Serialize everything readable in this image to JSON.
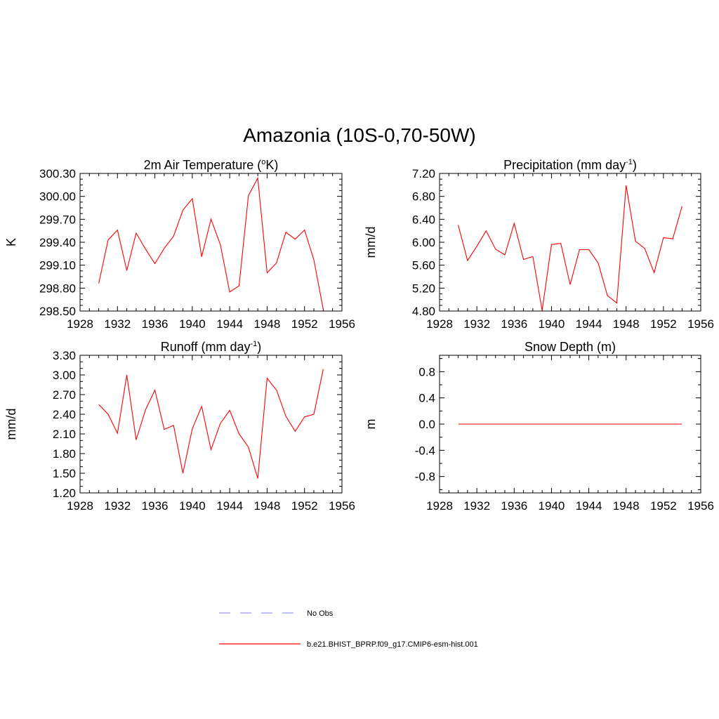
{
  "figure": {
    "title": "Amazonia (10S-0,70-50W)"
  },
  "colors": {
    "series": "#ff0000",
    "obs": "#9999ee",
    "axis": "#000000"
  },
  "legend": {
    "entries": [
      {
        "label": "No Obs",
        "style": "dashed",
        "color": "#9999ee"
      },
      {
        "label": "b.e21.BHIST_BPRP.f09_g17.CMIP6-esm-hist.001",
        "style": "solid",
        "color": "#ff0000"
      }
    ]
  },
  "chart_data": [
    {
      "id": "temperature",
      "type": "line",
      "title": "2m Air Temperature (",
      "title_sup": "o",
      "title_suffix": "K)",
      "ylabel": "K",
      "xlabel": "",
      "xlim": [
        1928,
        1956
      ],
      "xticks": [
        1928,
        1932,
        1936,
        1940,
        1944,
        1948,
        1952,
        1956
      ],
      "xtick_labels": [
        "1928",
        "1932",
        "1936",
        "1940",
        "1944",
        "1948",
        "1952",
        "1956"
      ],
      "ylim": [
        298.5,
        300.3
      ],
      "yticks": [
        298.5,
        298.8,
        299.1,
        299.4,
        299.7,
        300.0,
        300.3
      ],
      "ytick_labels": [
        "298.50",
        "298.80",
        "299.10",
        "299.40",
        "299.70",
        "300.00",
        "300.30"
      ],
      "yminor": 3,
      "series": [
        {
          "name": "b.e21.BHIST_BPRP.f09_g17.CMIP6-esm-hist.001",
          "x": [
            1930,
            1931,
            1932,
            1933,
            1934,
            1935,
            1936,
            1937,
            1938,
            1939,
            1940,
            1941,
            1942,
            1943,
            1944,
            1945,
            1946,
            1947,
            1948,
            1949,
            1950,
            1951,
            1952,
            1953,
            1954
          ],
          "values": [
            298.86,
            299.43,
            299.56,
            299.03,
            299.52,
            299.31,
            299.12,
            299.32,
            299.48,
            299.82,
            299.97,
            299.21,
            299.7,
            299.37,
            298.75,
            298.83,
            300.01,
            300.24,
            299.0,
            299.13,
            299.53,
            299.44,
            299.56,
            299.17,
            298.52
          ]
        }
      ]
    },
    {
      "id": "precipitation",
      "type": "line",
      "title": "Precipitation (mm day",
      "title_sup": "-1",
      "title_suffix": ")",
      "ylabel": "mm/d",
      "xlabel": "",
      "xlim": [
        1928,
        1956
      ],
      "xticks": [
        1928,
        1932,
        1936,
        1940,
        1944,
        1948,
        1952,
        1956
      ],
      "xtick_labels": [
        "1928",
        "1932",
        "1936",
        "1940",
        "1944",
        "1948",
        "1952",
        "1956"
      ],
      "ylim": [
        4.8,
        7.2
      ],
      "yticks": [
        4.8,
        5.2,
        5.6,
        6.0,
        6.4,
        6.8,
        7.2
      ],
      "ytick_labels": [
        "4.80",
        "5.20",
        "5.60",
        "6.00",
        "6.40",
        "6.80",
        "7.20"
      ],
      "yminor": 3,
      "series": [
        {
          "name": "b.e21.BHIST_BPRP.f09_g17.CMIP6-esm-hist.001",
          "x": [
            1930,
            1931,
            1932,
            1933,
            1934,
            1935,
            1936,
            1937,
            1938,
            1939,
            1940,
            1941,
            1942,
            1943,
            1944,
            1945,
            1946,
            1947,
            1948,
            1949,
            1950,
            1951,
            1952,
            1953,
            1954
          ],
          "values": [
            6.3,
            5.68,
            5.93,
            6.2,
            5.88,
            5.78,
            6.33,
            5.7,
            5.75,
            4.81,
            5.96,
            5.98,
            5.26,
            5.87,
            5.87,
            5.64,
            5.07,
            4.94,
            6.99,
            6.02,
            5.89,
            5.47,
            6.08,
            6.06,
            6.63
          ]
        }
      ]
    },
    {
      "id": "runoff",
      "type": "line",
      "title": "Runoff (mm day",
      "title_sup": "-1",
      "title_suffix": ")",
      "ylabel": "mm/d",
      "xlabel": "",
      "xlim": [
        1928,
        1956
      ],
      "xticks": [
        1928,
        1932,
        1936,
        1940,
        1944,
        1948,
        1952,
        1956
      ],
      "xtick_labels": [
        "1928",
        "1932",
        "1936",
        "1940",
        "1944",
        "1948",
        "1952",
        "1956"
      ],
      "ylim": [
        1.2,
        3.3
      ],
      "yticks": [
        1.2,
        1.5,
        1.8,
        2.1,
        2.4,
        2.7,
        3.0,
        3.3
      ],
      "ytick_labels": [
        "1.20",
        "1.50",
        "1.80",
        "2.10",
        "2.40",
        "2.70",
        "3.00",
        "3.30"
      ],
      "yminor": 2,
      "series": [
        {
          "name": "b.e21.BHIST_BPRP.f09_g17.CMIP6-esm-hist.001",
          "x": [
            1930,
            1931,
            1932,
            1933,
            1934,
            1935,
            1936,
            1937,
            1938,
            1939,
            1940,
            1941,
            1942,
            1943,
            1944,
            1945,
            1946,
            1947,
            1948,
            1949,
            1950,
            1951,
            1952,
            1953,
            1954
          ],
          "values": [
            2.55,
            2.4,
            2.11,
            3.0,
            2.01,
            2.47,
            2.77,
            2.17,
            2.23,
            1.5,
            2.18,
            2.52,
            1.86,
            2.26,
            2.46,
            2.1,
            1.9,
            1.42,
            2.95,
            2.77,
            2.37,
            2.14,
            2.36,
            2.4,
            3.09
          ]
        }
      ]
    },
    {
      "id": "snow-depth",
      "type": "line",
      "title": "Snow Depth (m)",
      "title_sup": "",
      "title_suffix": "",
      "ylabel": "m",
      "xlabel": "",
      "xlim": [
        1928,
        1956
      ],
      "xticks": [
        1928,
        1932,
        1936,
        1940,
        1944,
        1948,
        1952,
        1956
      ],
      "xtick_labels": [
        "1928",
        "1932",
        "1936",
        "1940",
        "1944",
        "1948",
        "1952",
        "1956"
      ],
      "ylim": [
        -1.05,
        1.05
      ],
      "yticks": [
        -0.8,
        -0.4,
        0.0,
        0.4,
        0.8
      ],
      "ytick_labels": [
        "-0.8",
        "-0.4",
        "0.0",
        "0.4",
        "0.8"
      ],
      "yminor": 1,
      "series": [
        {
          "name": "b.e21.BHIST_BPRP.f09_g17.CMIP6-esm-hist.001",
          "x": [
            1930,
            1931,
            1932,
            1933,
            1934,
            1935,
            1936,
            1937,
            1938,
            1939,
            1940,
            1941,
            1942,
            1943,
            1944,
            1945,
            1946,
            1947,
            1948,
            1949,
            1950,
            1951,
            1952,
            1953,
            1954
          ],
          "values": [
            0,
            0,
            0,
            0,
            0,
            0,
            0,
            0,
            0,
            0,
            0,
            0,
            0,
            0,
            0,
            0,
            0,
            0,
            0,
            0,
            0,
            0,
            0,
            0,
            0
          ]
        }
      ]
    }
  ]
}
